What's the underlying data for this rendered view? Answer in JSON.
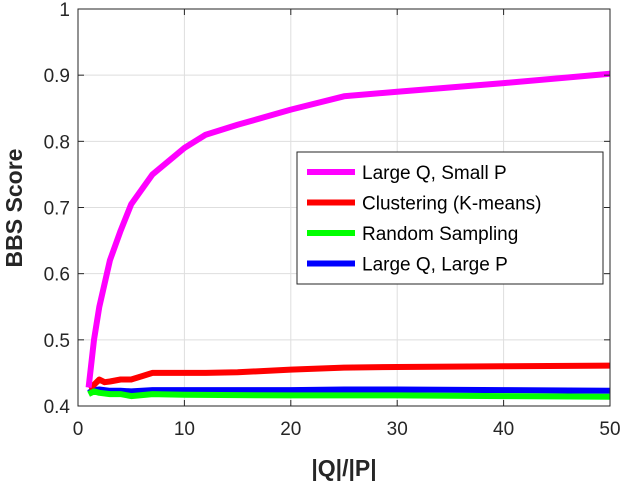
{
  "chart_data": {
    "type": "line",
    "title": "",
    "xlabel": "|Q|/|P|",
    "ylabel": "BBS Score",
    "xlim": [
      0,
      50
    ],
    "ylim": [
      0.4,
      1
    ],
    "xticks": [
      0,
      10,
      20,
      30,
      40,
      50
    ],
    "yticks": [
      0.4,
      0.5,
      0.6,
      0.7,
      0.8,
      0.9,
      1
    ],
    "ytick_labels": [
      "0.4",
      "0.5",
      "0.6",
      "0.7",
      "0.8",
      "0.9",
      "1"
    ],
    "grid": true,
    "legend_position": "center-right",
    "series": [
      {
        "name": "Large Q, Small P",
        "color": "#ff00ff",
        "x": [
          1,
          1.5,
          2,
          3,
          4,
          5,
          7,
          10,
          12,
          15,
          20,
          25,
          30,
          40,
          50
        ],
        "y": [
          0.428,
          0.5,
          0.55,
          0.62,
          0.665,
          0.705,
          0.75,
          0.79,
          0.81,
          0.825,
          0.848,
          0.868,
          0.875,
          0.888,
          0.902
        ]
      },
      {
        "name": "Clustering (K-means)",
        "color": "#ff0000",
        "x": [
          1,
          1.5,
          2,
          2.5,
          3,
          4,
          5,
          6,
          7,
          10,
          12,
          15,
          20,
          25,
          30,
          40,
          50
        ],
        "y": [
          0.428,
          0.432,
          0.44,
          0.436,
          0.437,
          0.44,
          0.44,
          0.445,
          0.45,
          0.45,
          0.45,
          0.451,
          0.455,
          0.458,
          0.459,
          0.46,
          0.461
        ]
      },
      {
        "name": "Random Sampling",
        "color": "#00ff00",
        "x": [
          1,
          1.5,
          2,
          3,
          4,
          5,
          7,
          10,
          20,
          30,
          40,
          50
        ],
        "y": [
          0.418,
          0.422,
          0.42,
          0.418,
          0.418,
          0.415,
          0.418,
          0.417,
          0.416,
          0.416,
          0.415,
          0.414
        ]
      },
      {
        "name": "Large Q, Large P",
        "color": "#0000ff",
        "x": [
          1,
          1.5,
          2,
          3,
          4,
          5,
          7,
          10,
          20,
          25,
          30,
          40,
          50
        ],
        "y": [
          0.42,
          0.424,
          0.425,
          0.423,
          0.423,
          0.422,
          0.424,
          0.424,
          0.424,
          0.425,
          0.425,
          0.424,
          0.423
        ]
      }
    ]
  }
}
